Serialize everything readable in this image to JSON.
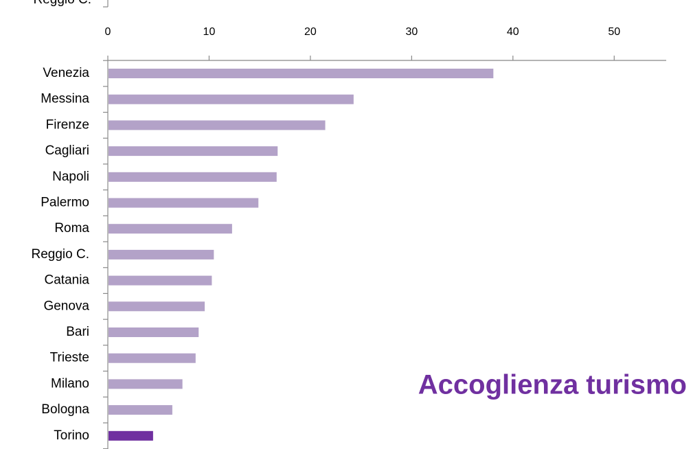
{
  "chart_data": {
    "type": "barh",
    "title": "Accoglienza turismo",
    "previous_chart_label": "Reggio C.",
    "categories": [
      "Venezia",
      "Messina",
      "Firenze",
      "Cagliari",
      "Napoli",
      "Palermo",
      "Roma",
      "Reggio C.",
      "Catania",
      "Genova",
      "Bari",
      "Trieste",
      "Milano",
      "Bologna",
      "Torino"
    ],
    "values": [
      38,
      24.2,
      21.4,
      16.7,
      16.6,
      14.8,
      12.2,
      10.4,
      10.2,
      9.5,
      8.9,
      8.6,
      7.3,
      6.3,
      4.4
    ],
    "colors": [
      "#b3a2c8",
      "#b3a2c8",
      "#b3a2c8",
      "#b3a2c8",
      "#b3a2c8",
      "#b3a2c8",
      "#b3a2c8",
      "#b3a2c8",
      "#b3a2c8",
      "#b3a2c8",
      "#b3a2c8",
      "#b3a2c8",
      "#b3a2c8",
      "#b3a2c8",
      "#7030a0"
    ],
    "title_color": "#7030a0",
    "xlim": [
      0,
      55
    ],
    "xticks": [
      0,
      10,
      20,
      30,
      40,
      50
    ],
    "grid": false
  }
}
